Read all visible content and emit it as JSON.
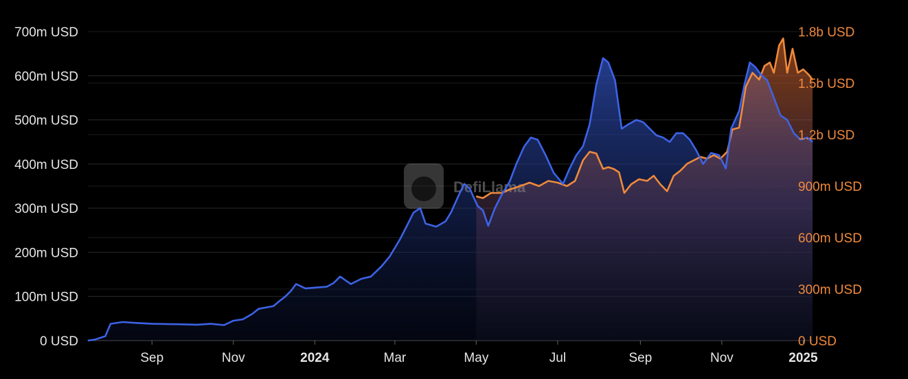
{
  "colors": {
    "background": "#000000",
    "series_left": "#3d63e6",
    "series_right": "#f08a3c",
    "grid": "#2a2a2a",
    "tick_text": "#e6e6e6"
  },
  "watermark": {
    "text": "DefiLlama",
    "icon": "llama-logo-icon"
  },
  "chart_data": {
    "type": "area",
    "grid": true,
    "legend": "none",
    "x_range": [
      "2023-07-15",
      "2025-01-08"
    ],
    "x_ticks": [
      {
        "date": "2023-09-01",
        "label": "Sep",
        "bold": false
      },
      {
        "date": "2023-11-01",
        "label": "Nov",
        "bold": false
      },
      {
        "date": "2024-01-01",
        "label": "2024",
        "bold": true
      },
      {
        "date": "2024-03-01",
        "label": "Mar",
        "bold": false
      },
      {
        "date": "2024-05-01",
        "label": "May",
        "bold": false
      },
      {
        "date": "2024-07-01",
        "label": "Jul",
        "bold": false
      },
      {
        "date": "2024-09-01",
        "label": "Sep",
        "bold": false
      },
      {
        "date": "2024-11-01",
        "label": "Nov",
        "bold": false
      },
      {
        "date": "2025-01-01",
        "label": "2025",
        "bold": true
      }
    ],
    "y_left": {
      "range": [
        0,
        700
      ],
      "unit": "m USD",
      "ticks": [
        {
          "value": 0,
          "label": "0 USD"
        },
        {
          "value": 100,
          "label": "100m USD"
        },
        {
          "value": 200,
          "label": "200m USD"
        },
        {
          "value": 300,
          "label": "300m USD"
        },
        {
          "value": 400,
          "label": "400m USD"
        },
        {
          "value": 500,
          "label": "500m USD"
        },
        {
          "value": 600,
          "label": "600m USD"
        },
        {
          "value": 700,
          "label": "700m USD"
        }
      ]
    },
    "y_right": {
      "range": [
        0,
        1800
      ],
      "unit": "m USD",
      "ticks": [
        {
          "value": 0,
          "label": "0 USD"
        },
        {
          "value": 300,
          "label": "300m USD"
        },
        {
          "value": 600,
          "label": "600m USD"
        },
        {
          "value": 900,
          "label": "900m USD"
        },
        {
          "value": 1200,
          "label": "1.2b USD"
        },
        {
          "value": 1500,
          "label": "1.5b USD"
        },
        {
          "value": 1800,
          "label": "1.8b USD"
        }
      ]
    },
    "series": [
      {
        "axis": "left",
        "color": "#3d63e6",
        "points": [
          [
            "2023-07-15",
            0
          ],
          [
            "2023-07-20",
            2
          ],
          [
            "2023-07-28",
            10
          ],
          [
            "2023-08-01",
            38
          ],
          [
            "2023-08-10",
            42
          ],
          [
            "2023-08-20",
            40
          ],
          [
            "2023-09-01",
            38
          ],
          [
            "2023-09-20",
            37
          ],
          [
            "2023-10-05",
            36
          ],
          [
            "2023-10-15",
            38
          ],
          [
            "2023-10-25",
            35
          ],
          [
            "2023-11-01",
            45
          ],
          [
            "2023-11-08",
            48
          ],
          [
            "2023-11-15",
            60
          ],
          [
            "2023-11-20",
            72
          ],
          [
            "2023-12-01",
            78
          ],
          [
            "2023-12-05",
            88
          ],
          [
            "2023-12-10",
            100
          ],
          [
            "2023-12-14",
            112
          ],
          [
            "2023-12-18",
            128
          ],
          [
            "2023-12-25",
            118
          ],
          [
            "2024-01-01",
            120
          ],
          [
            "2024-01-10",
            122
          ],
          [
            "2024-01-15",
            130
          ],
          [
            "2024-01-20",
            145
          ],
          [
            "2024-01-28",
            128
          ],
          [
            "2024-02-05",
            140
          ],
          [
            "2024-02-12",
            145
          ],
          [
            "2024-02-20",
            168
          ],
          [
            "2024-02-26",
            190
          ],
          [
            "2024-03-01",
            210
          ],
          [
            "2024-03-05",
            230
          ],
          [
            "2024-03-10",
            260
          ],
          [
            "2024-03-15",
            290
          ],
          [
            "2024-03-20",
            300
          ],
          [
            "2024-03-24",
            265
          ],
          [
            "2024-04-01",
            258
          ],
          [
            "2024-04-08",
            270
          ],
          [
            "2024-04-12",
            290
          ],
          [
            "2024-04-18",
            330
          ],
          [
            "2024-04-22",
            355
          ],
          [
            "2024-04-26",
            345
          ],
          [
            "2024-05-02",
            305
          ],
          [
            "2024-05-06",
            295
          ],
          [
            "2024-05-10",
            260
          ],
          [
            "2024-05-15",
            300
          ],
          [
            "2024-05-20",
            330
          ],
          [
            "2024-05-26",
            360
          ],
          [
            "2024-05-31",
            400
          ],
          [
            "2024-06-06",
            440
          ],
          [
            "2024-06-11",
            460
          ],
          [
            "2024-06-16",
            455
          ],
          [
            "2024-06-22",
            420
          ],
          [
            "2024-06-28",
            380
          ],
          [
            "2024-07-05",
            355
          ],
          [
            "2024-07-10",
            390
          ],
          [
            "2024-07-15",
            420
          ],
          [
            "2024-07-20",
            440
          ],
          [
            "2024-07-25",
            490
          ],
          [
            "2024-07-30",
            580
          ],
          [
            "2024-08-04",
            640
          ],
          [
            "2024-08-08",
            630
          ],
          [
            "2024-08-13",
            590
          ],
          [
            "2024-08-18",
            480
          ],
          [
            "2024-08-23",
            490
          ],
          [
            "2024-08-29",
            500
          ],
          [
            "2024-09-03",
            495
          ],
          [
            "2024-09-08",
            480
          ],
          [
            "2024-09-13",
            465
          ],
          [
            "2024-09-18",
            460
          ],
          [
            "2024-09-23",
            450
          ],
          [
            "2024-09-28",
            470
          ],
          [
            "2024-10-03",
            470
          ],
          [
            "2024-10-08",
            455
          ],
          [
            "2024-10-13",
            430
          ],
          [
            "2024-10-18",
            400
          ],
          [
            "2024-10-24",
            425
          ],
          [
            "2024-10-30",
            420
          ],
          [
            "2024-11-04",
            390
          ],
          [
            "2024-11-08",
            480
          ],
          [
            "2024-11-14",
            520
          ],
          [
            "2024-11-18",
            580
          ],
          [
            "2024-11-22",
            630
          ],
          [
            "2024-11-26",
            620
          ],
          [
            "2024-12-01",
            600
          ],
          [
            "2024-12-05",
            590
          ],
          [
            "2024-12-10",
            550
          ],
          [
            "2024-12-15",
            510
          ],
          [
            "2024-12-20",
            500
          ],
          [
            "2024-12-25",
            470
          ],
          [
            "2024-12-30",
            455
          ],
          [
            "2025-01-04",
            460
          ],
          [
            "2025-01-08",
            450
          ]
        ]
      },
      {
        "axis": "right",
        "color": "#f08a3c",
        "points": [
          [
            "2024-05-01",
            840
          ],
          [
            "2024-05-06",
            830
          ],
          [
            "2024-05-12",
            860
          ],
          [
            "2024-05-20",
            860
          ],
          [
            "2024-05-26",
            880
          ],
          [
            "2024-06-03",
            900
          ],
          [
            "2024-06-10",
            920
          ],
          [
            "2024-06-17",
            900
          ],
          [
            "2024-06-24",
            930
          ],
          [
            "2024-07-01",
            920
          ],
          [
            "2024-07-08",
            900
          ],
          [
            "2024-07-14",
            930
          ],
          [
            "2024-07-20",
            1050
          ],
          [
            "2024-07-25",
            1100
          ],
          [
            "2024-07-30",
            1090
          ],
          [
            "2024-08-04",
            1000
          ],
          [
            "2024-08-08",
            1010
          ],
          [
            "2024-08-12",
            1000
          ],
          [
            "2024-08-16",
            980
          ],
          [
            "2024-08-20",
            860
          ],
          [
            "2024-08-25",
            910
          ],
          [
            "2024-08-31",
            940
          ],
          [
            "2024-09-06",
            930
          ],
          [
            "2024-09-11",
            960
          ],
          [
            "2024-09-16",
            910
          ],
          [
            "2024-09-21",
            870
          ],
          [
            "2024-09-26",
            960
          ],
          [
            "2024-10-01",
            990
          ],
          [
            "2024-10-06",
            1030
          ],
          [
            "2024-10-11",
            1050
          ],
          [
            "2024-10-16",
            1070
          ],
          [
            "2024-10-21",
            1060
          ],
          [
            "2024-10-26",
            1080
          ],
          [
            "2024-10-31",
            1060
          ],
          [
            "2024-11-05",
            1100
          ],
          [
            "2024-11-09",
            1230
          ],
          [
            "2024-11-14",
            1240
          ],
          [
            "2024-11-19",
            1480
          ],
          [
            "2024-11-24",
            1560
          ],
          [
            "2024-11-29",
            1520
          ],
          [
            "2024-12-03",
            1600
          ],
          [
            "2024-12-07",
            1620
          ],
          [
            "2024-12-10",
            1560
          ],
          [
            "2024-12-14",
            1720
          ],
          [
            "2024-12-17",
            1760
          ],
          [
            "2024-12-20",
            1560
          ],
          [
            "2024-12-24",
            1700
          ],
          [
            "2024-12-28",
            1560
          ],
          [
            "2025-01-01",
            1580
          ],
          [
            "2025-01-05",
            1550
          ],
          [
            "2025-01-08",
            1520
          ]
        ]
      }
    ]
  }
}
